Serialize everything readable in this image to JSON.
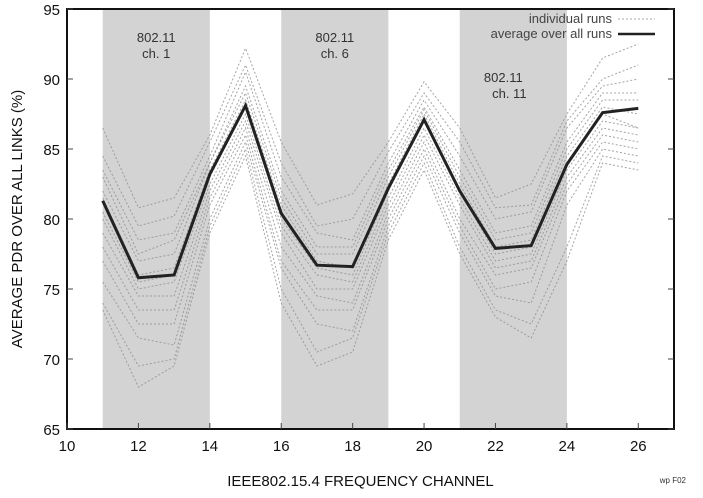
{
  "chart_data": {
    "type": "line",
    "title": "",
    "xlabel": "IEEE802.15.4 FREQUENCY CHANNEL",
    "ylabel": "AVERAGE PDR OVER ALL LINKS (%)",
    "xlim": [
      10,
      27
    ],
    "ylim": [
      65,
      95
    ],
    "xticks": [
      10,
      12,
      14,
      16,
      18,
      20,
      22,
      24,
      26
    ],
    "yticks": [
      65,
      70,
      75,
      80,
      85,
      90,
      95
    ],
    "grid": false,
    "legend_position": "top-right",
    "x": [
      11,
      12,
      13,
      14,
      15,
      16,
      17,
      18,
      19,
      20,
      21,
      22,
      23,
      24,
      25,
      26
    ],
    "shaded_bands": [
      {
        "from": 11,
        "to": 14,
        "label_line1": "802.11",
        "label_line2": "ch. 1"
      },
      {
        "from": 16,
        "to": 19,
        "label_line1": "802.11",
        "label_line2": "ch. 6"
      },
      {
        "from": 21,
        "to": 24,
        "label_line1": "802.11",
        "label_line2": "ch. 11"
      }
    ],
    "series": [
      {
        "name": "average over all runs",
        "style": "solid",
        "color": "#222222",
        "values": [
          81.3,
          75.8,
          76.0,
          83.2,
          88.1,
          80.4,
          76.7,
          76.6,
          82.2,
          87.1,
          82.0,
          77.9,
          78.1,
          83.9,
          87.6,
          87.9
        ]
      }
    ],
    "individual_runs": {
      "name": "individual runs",
      "style": "dotted",
      "color": "#9a9a9a",
      "runs": [
        [
          86.5,
          80.8,
          81.5,
          86.0,
          92.2,
          85.5,
          81.0,
          81.8,
          85.5,
          89.8,
          86.5,
          81.5,
          82.5,
          87.5,
          91.5,
          92.5
        ],
        [
          84.5,
          79.5,
          80.2,
          85.5,
          91.0,
          84.0,
          79.5,
          80.0,
          84.8,
          89.0,
          85.5,
          80.8,
          81.0,
          87.0,
          90.0,
          91.0
        ],
        [
          83.5,
          78.5,
          79.0,
          84.5,
          90.5,
          83.0,
          79.0,
          78.5,
          84.0,
          88.5,
          84.5,
          80.0,
          80.5,
          86.5,
          89.5,
          90.0
        ],
        [
          83.0,
          77.5,
          78.5,
          84.0,
          89.5,
          82.0,
          78.0,
          78.0,
          83.5,
          88.0,
          83.5,
          79.0,
          79.5,
          85.5,
          89.0,
          89.0
        ],
        [
          82.0,
          77.0,
          77.5,
          84.0,
          89.0,
          81.5,
          77.5,
          77.5,
          83.0,
          87.8,
          83.0,
          78.5,
          79.0,
          85.0,
          88.5,
          88.5
        ],
        [
          81.5,
          76.0,
          76.5,
          83.5,
          88.5,
          81.0,
          77.0,
          76.5,
          82.5,
          87.5,
          82.5,
          78.0,
          78.5,
          84.5,
          88.0,
          87.5
        ],
        [
          80.5,
          75.5,
          76.0,
          83.0,
          88.0,
          80.0,
          76.5,
          76.0,
          82.0,
          87.0,
          82.0,
          77.5,
          78.0,
          84.0,
          87.5,
          86.5
        ],
        [
          80.0,
          75.0,
          75.5,
          82.5,
          87.5,
          79.5,
          76.0,
          75.5,
          81.5,
          86.5,
          81.5,
          77.0,
          77.5,
          83.5,
          87.0,
          86.5
        ],
        [
          79.0,
          74.5,
          74.5,
          82.0,
          87.0,
          79.0,
          75.0,
          75.0,
          81.0,
          86.0,
          81.0,
          76.5,
          77.0,
          83.0,
          86.5,
          86.0
        ],
        [
          78.0,
          73.5,
          73.5,
          81.5,
          86.5,
          78.0,
          74.5,
          74.0,
          80.5,
          85.5,
          80.0,
          76.0,
          76.5,
          82.5,
          86.0,
          85.5
        ],
        [
          77.0,
          72.5,
          72.5,
          81.0,
          86.0,
          77.0,
          73.5,
          73.5,
          80.0,
          85.0,
          79.5,
          75.0,
          75.5,
          82.0,
          85.5,
          85.0
        ],
        [
          75.5,
          71.5,
          71.0,
          80.0,
          85.5,
          76.5,
          72.5,
          72.0,
          79.5,
          84.5,
          79.0,
          74.5,
          74.0,
          81.0,
          85.0,
          84.5
        ],
        [
          74.0,
          69.5,
          70.0,
          79.5,
          85.0,
          75.0,
          70.5,
          71.5,
          79.0,
          84.0,
          78.0,
          73.5,
          72.5,
          78.0,
          84.5,
          84.0
        ],
        [
          73.5,
          68.0,
          69.5,
          79.0,
          84.5,
          74.0,
          69.5,
          70.5,
          78.5,
          83.5,
          77.5,
          73.0,
          71.5,
          77.0,
          84.0,
          83.5
        ]
      ]
    },
    "legend": [
      {
        "label": "individual runs",
        "style": "dotted"
      },
      {
        "label": "average over all runs",
        "style": "solid"
      }
    ],
    "footnote": "wp F02"
  }
}
